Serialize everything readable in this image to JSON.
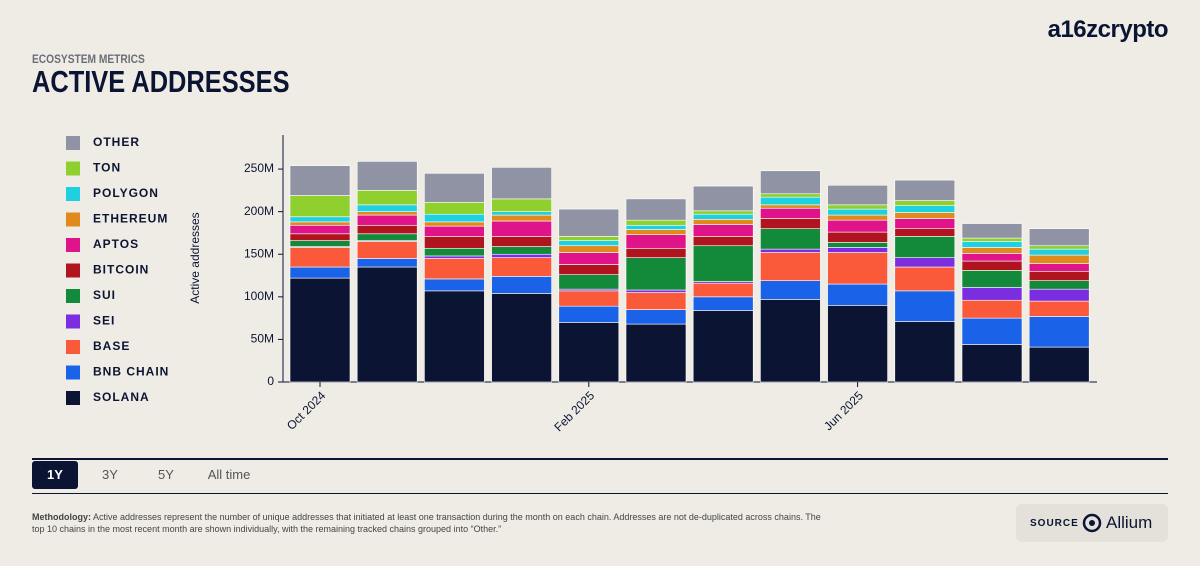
{
  "brand": "a16zcrypto",
  "header": {
    "kicker": "ECOSYSTEM METRICS",
    "title": "ACTIVE ADDRESSES"
  },
  "chart_data": {
    "type": "stacked-bar",
    "y_label": "Active addresses",
    "categories": [
      "Oct 2024",
      null,
      null,
      null,
      "Feb 2025",
      null,
      null,
      null,
      "Jun 2025",
      null,
      null,
      null
    ],
    "ylim": [
      0,
      290000000
    ],
    "yticks": [
      0,
      {
        "value": 50000000,
        "label": "50M"
      },
      {
        "value": 100000000,
        "label": "100M"
      },
      {
        "value": 150000000,
        "label": "150M"
      },
      {
        "value": 200000000,
        "label": "200M"
      },
      {
        "value": 250000000,
        "label": "250M"
      }
    ],
    "grid": false,
    "legend": "left",
    "series": [
      {
        "name": "SOLANA",
        "color": "#0b1533",
        "values": [
          122000000,
          135000000,
          107000000,
          104000000,
          70000000,
          68000000,
          84000000,
          97000000,
          90000000,
          71000000,
          44000000,
          41000000
        ]
      },
      {
        "name": "BNB CHAIN",
        "color": "#1a62e8",
        "values": [
          13000000,
          10000000,
          14000000,
          20000000,
          19000000,
          17000000,
          16000000,
          22000000,
          25000000,
          36000000,
          31000000,
          36000000
        ]
      },
      {
        "name": "BASE",
        "color": "#fa5a3a",
        "values": [
          23000000,
          20000000,
          24000000,
          22000000,
          18000000,
          20000000,
          16000000,
          33000000,
          37000000,
          28000000,
          21000000,
          18000000
        ]
      },
      {
        "name": "SEI",
        "color": "#7a2ee0",
        "values": [
          1000000,
          1000000,
          3000000,
          4000000,
          2000000,
          3000000,
          2000000,
          4000000,
          6000000,
          11000000,
          15000000,
          14000000
        ]
      },
      {
        "name": "SUI",
        "color": "#128a3a",
        "values": [
          7000000,
          8000000,
          9000000,
          9000000,
          17000000,
          38000000,
          42000000,
          24000000,
          6000000,
          25000000,
          20000000,
          10000000
        ]
      },
      {
        "name": "BITCOIN",
        "color": "#b0141e",
        "values": [
          8000000,
          10000000,
          14000000,
          12000000,
          12000000,
          11000000,
          11000000,
          12000000,
          12000000,
          9000000,
          11000000,
          11000000
        ]
      },
      {
        "name": "APTOS",
        "color": "#e0148a",
        "values": [
          10000000,
          12000000,
          12000000,
          18000000,
          14000000,
          16000000,
          14000000,
          12000000,
          14000000,
          12000000,
          9000000,
          9000000
        ]
      },
      {
        "name": "ETHEREUM",
        "color": "#e08a1e",
        "values": [
          4000000,
          4000000,
          5000000,
          7000000,
          8000000,
          6000000,
          6000000,
          4000000,
          6000000,
          7000000,
          7000000,
          10000000
        ]
      },
      {
        "name": "POLYGON",
        "color": "#1fd0e0",
        "values": [
          6000000,
          8000000,
          9000000,
          4000000,
          6000000,
          5000000,
          6000000,
          9000000,
          7000000,
          8000000,
          7000000,
          7000000
        ]
      },
      {
        "name": "TON",
        "color": "#8fcf2e",
        "values": [
          25000000,
          17000000,
          14000000,
          15000000,
          5000000,
          6000000,
          4000000,
          4000000,
          5000000,
          6000000,
          4000000,
          4000000
        ]
      },
      {
        "name": "OTHER",
        "color": "#8f93a3",
        "values": [
          35000000,
          34000000,
          34000000,
          37000000,
          32000000,
          25000000,
          29000000,
          27000000,
          23000000,
          24000000,
          17000000,
          20000000
        ]
      }
    ]
  },
  "tabs": [
    {
      "label": "1Y",
      "selected": true
    },
    {
      "label": "3Y",
      "selected": false
    },
    {
      "label": "5Y",
      "selected": false
    },
    {
      "label": "All time",
      "selected": false
    }
  ],
  "methodology": {
    "label": "Methodology:",
    "text": "Active addresses represent the number of unique addresses that initiated at least one transaction during the month on each chain. Addresses are not de-duplicated across chains. The top 10 chains in the most recent month are shown individually, with the remaining tracked chains grouped into “Other.”"
  },
  "source": {
    "label": "SOURCE",
    "name": "Allium"
  }
}
